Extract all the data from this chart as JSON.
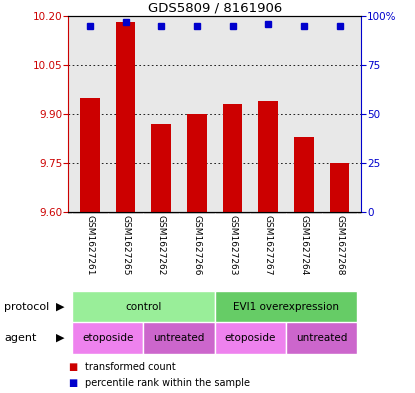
{
  "title": "GDS5809 / 8161906",
  "samples": [
    "GSM1627261",
    "GSM1627265",
    "GSM1627262",
    "GSM1627266",
    "GSM1627263",
    "GSM1627267",
    "GSM1627264",
    "GSM1627268"
  ],
  "transformed_counts": [
    9.95,
    10.18,
    9.87,
    9.9,
    9.93,
    9.94,
    9.83,
    9.75
  ],
  "percentile_ranks": [
    95,
    97,
    95,
    95,
    95,
    96,
    95,
    95
  ],
  "ylim_left": [
    9.6,
    10.2
  ],
  "ylim_right": [
    0,
    100
  ],
  "yticks_left": [
    9.6,
    9.75,
    9.9,
    10.05,
    10.2
  ],
  "yticks_right": [
    0,
    25,
    50,
    75,
    100
  ],
  "bar_color": "#cc0000",
  "dot_color": "#0000cc",
  "protocol_labels": [
    {
      "text": "control",
      "start": 0,
      "end": 3,
      "color": "#99ee99"
    },
    {
      "text": "EVI1 overexpression",
      "start": 4,
      "end": 7,
      "color": "#66cc66"
    }
  ],
  "agent_labels": [
    {
      "text": "etoposide",
      "start": 0,
      "end": 1,
      "color": "#ee82ee"
    },
    {
      "text": "untreated",
      "start": 2,
      "end": 3,
      "color": "#cc66cc"
    },
    {
      "text": "etoposide",
      "start": 4,
      "end": 5,
      "color": "#ee82ee"
    },
    {
      "text": "untreated",
      "start": 6,
      "end": 7,
      "color": "#cc66cc"
    }
  ],
  "xlabel_protocol": "protocol",
  "xlabel_agent": "agent",
  "legend_red": "transformed count",
  "legend_blue": "percentile rank within the sample",
  "background_color": "#ffffff",
  "plot_bg_color": "#e8e8e8",
  "left_axis_color": "#cc0000",
  "right_axis_color": "#0000cc"
}
